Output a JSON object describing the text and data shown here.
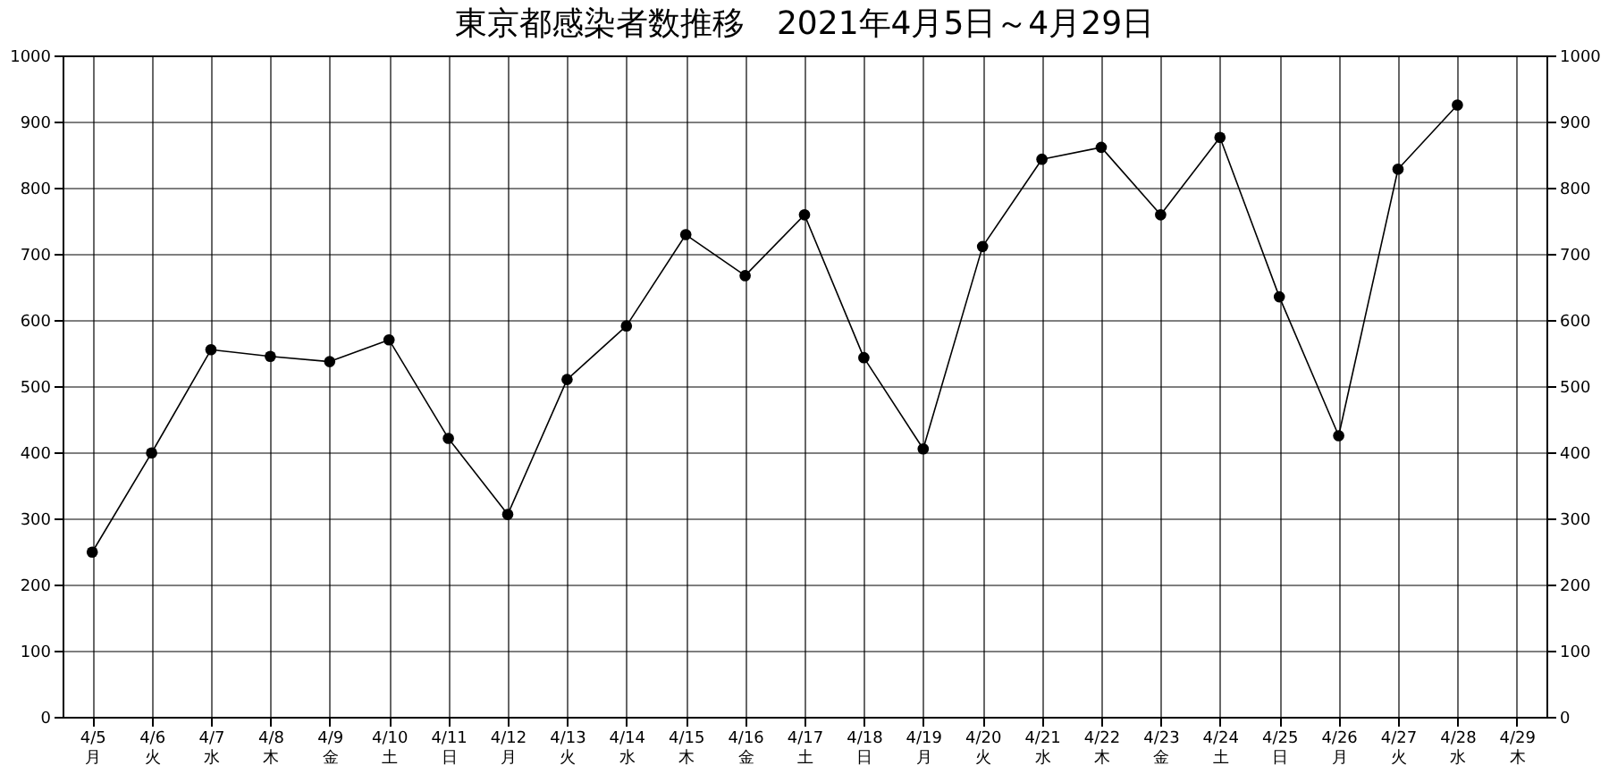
{
  "chart_data": {
    "type": "line",
    "title": "東京都感染者数推移　2021年4月5日～4月29日",
    "categories": [
      "4/5 月",
      "4/6 火",
      "4/7 水",
      "4/8 木",
      "4/9 金",
      "4/10 土",
      "4/11 日",
      "4/12 月",
      "4/13 火",
      "4/14 水",
      "4/15 木",
      "4/16 金",
      "4/17 土",
      "4/18 日",
      "4/19 月",
      "4/20 火",
      "4/21 水",
      "4/22 木",
      "4/23 金",
      "4/24 土",
      "4/25 日",
      "4/26 月",
      "4/27 火",
      "4/28 水",
      "4/29 木"
    ],
    "series": [
      {
        "color": "#000000",
        "values": [
          249,
          399,
          555,
          545,
          537,
          570,
          421,
          306,
          510,
          591,
          729,
          667,
          759,
          543,
          405,
          711,
          843,
          861,
          759,
          876,
          635,
          425,
          828,
          925,
          null
        ]
      }
    ],
    "ylim": [
      0,
      1000
    ],
    "yticks": [
      0,
      100,
      200,
      300,
      400,
      500,
      600,
      700,
      800,
      900,
      1000
    ],
    "y2lim": [
      0,
      1000
    ],
    "y2ticks": [
      0,
      100,
      200,
      300,
      400,
      500,
      600,
      700,
      800,
      900,
      1000
    ],
    "grid": true,
    "marker": "circle",
    "line_style": "solid"
  }
}
